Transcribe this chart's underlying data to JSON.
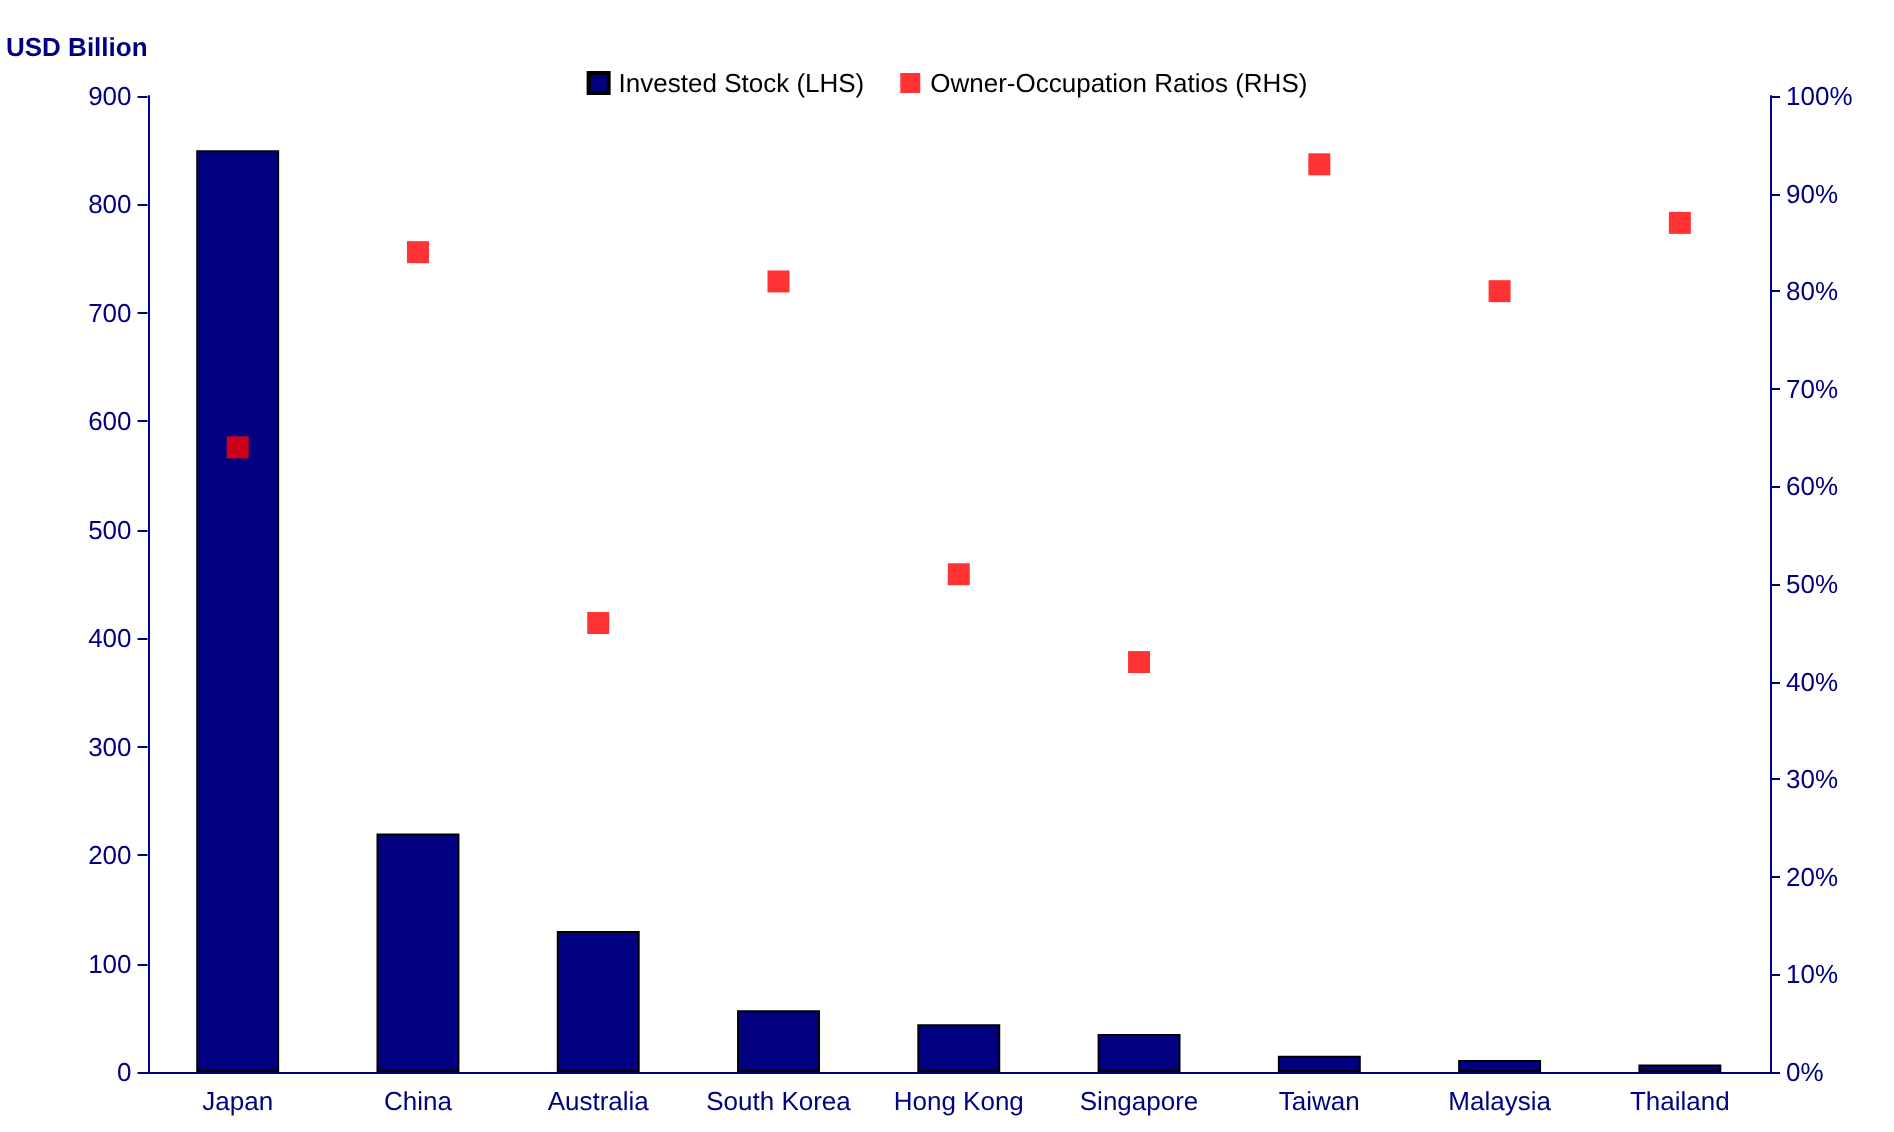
{
  "chart_data": {
    "type": "bar",
    "ylabel": "USD Billion",
    "categories": [
      "Japan",
      "China",
      "Australia",
      "South Korea",
      "Hong Kong",
      "Singapore",
      "Taiwan",
      "Malaysia",
      "Thailand"
    ],
    "series": [
      {
        "name": "Invested Stock (LHS)",
        "color": "#000080",
        "values": [
          850,
          220,
          130,
          57,
          44,
          35,
          15,
          11,
          7
        ]
      },
      {
        "name": "Owner-Occupation Ratios (RHS)",
        "type": "scatter",
        "axis": "y2",
        "color": "#ff0000",
        "marker": "square",
        "values": [
          64,
          84,
          46,
          81,
          51,
          42,
          93,
          80,
          87
        ]
      }
    ],
    "ylim": [
      0,
      900
    ],
    "yticks": [
      0,
      100,
      200,
      300,
      400,
      500,
      600,
      700,
      800,
      900
    ],
    "y2lim": [
      0,
      100
    ],
    "y2ticks": [
      {
        "value": 0,
        "label": "0%"
      },
      {
        "value": 10,
        "label": "10%"
      },
      {
        "value": 20,
        "label": "20%"
      },
      {
        "value": 30,
        "label": "30%"
      },
      {
        "value": 40,
        "label": "40%"
      },
      {
        "value": 50,
        "label": "50%"
      },
      {
        "value": 60,
        "label": "60%"
      },
      {
        "value": 70,
        "label": "70%"
      },
      {
        "value": 80,
        "label": "80%"
      },
      {
        "value": 90,
        "label": "90%"
      },
      {
        "value": 100,
        "label": "100%"
      }
    ],
    "grid": false,
    "legend": "top"
  }
}
